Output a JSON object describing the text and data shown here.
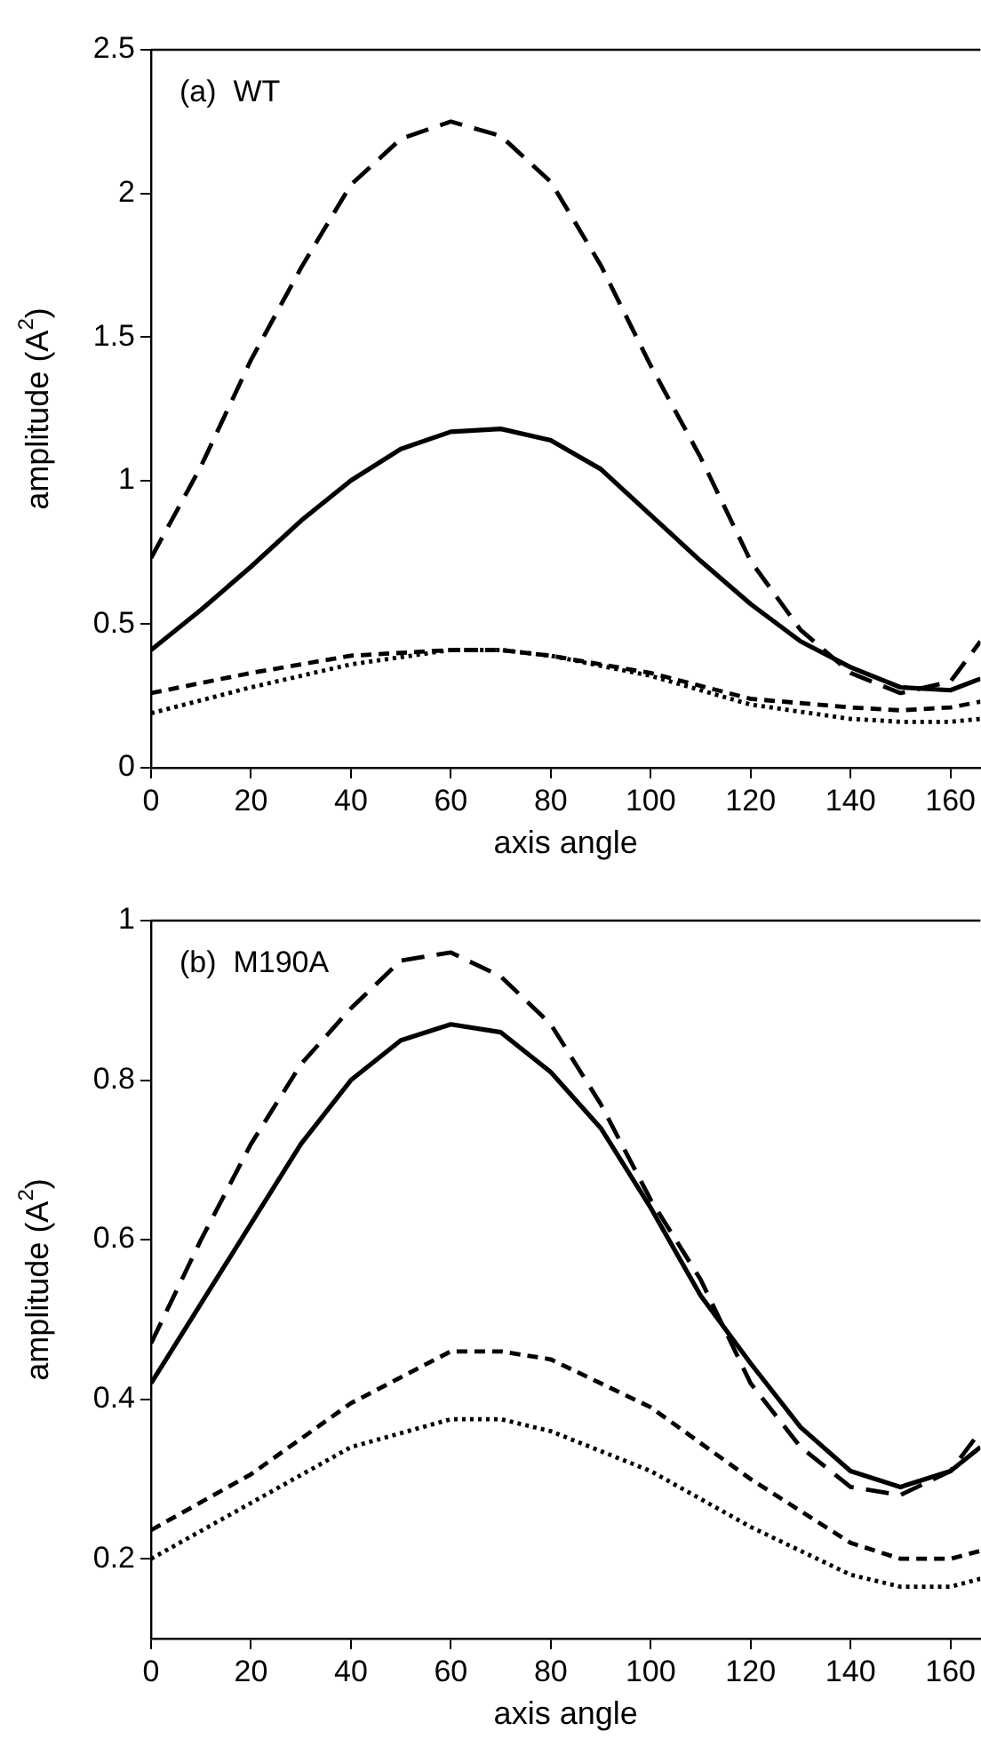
{
  "chart_data": [
    {
      "type": "line",
      "annotations": [
        "(a)  WT"
      ],
      "xlabel": "axis angle",
      "ylabel": "amplitude (A$^{2}$)",
      "x": [
        0,
        10,
        20,
        30,
        40,
        50,
        60,
        70,
        80,
        90,
        100,
        110,
        120,
        130,
        140,
        150,
        160,
        166
      ],
      "xlim": [
        0,
        166
      ],
      "xticks": [
        0,
        20,
        40,
        60,
        80,
        100,
        120,
        140,
        160
      ],
      "ylim": [
        0,
        2.5
      ],
      "yticks": [
        0,
        0.5,
        1,
        1.5,
        2,
        2.5
      ],
      "grid": false,
      "legend": false,
      "marker": "none",
      "series": [
        {
          "color": "#000000",
          "line_style": "dashed",
          "values": [
            0.73,
            1.05,
            1.42,
            1.74,
            2.03,
            2.19,
            2.25,
            2.2,
            2.04,
            1.75,
            1.4,
            1.08,
            0.72,
            0.48,
            0.33,
            0.26,
            0.3,
            0.44
          ]
        },
        {
          "color": "#000000",
          "line_style": "solid",
          "values": [
            0.41,
            0.55,
            0.7,
            0.86,
            1.0,
            1.11,
            1.17,
            1.18,
            1.14,
            1.04,
            0.88,
            0.72,
            0.57,
            0.44,
            0.35,
            0.28,
            0.27,
            0.31
          ]
        },
        {
          "color": "#000000",
          "line_style": "dashed",
          "x": [
            0,
            20,
            40,
            60,
            70,
            80,
            100,
            120,
            140,
            150,
            160,
            166
          ],
          "values": [
            0.26,
            0.33,
            0.39,
            0.41,
            0.41,
            0.39,
            0.33,
            0.24,
            0.21,
            0.2,
            0.21,
            0.23
          ]
        },
        {
          "color": "#000000",
          "line_style": "dotted",
          "x": [
            0,
            20,
            40,
            60,
            70,
            80,
            100,
            120,
            140,
            150,
            160,
            166
          ],
          "values": [
            0.19,
            0.28,
            0.36,
            0.41,
            0.41,
            0.39,
            0.32,
            0.22,
            0.17,
            0.16,
            0.16,
            0.17
          ]
        }
      ]
    },
    {
      "type": "line",
      "annotations": [
        "(b)  M190A"
      ],
      "xlabel": "axis angle",
      "ylabel": "amplitude (A$^{2}$)",
      "x": [
        0,
        10,
        20,
        30,
        40,
        50,
        60,
        70,
        80,
        90,
        100,
        110,
        120,
        130,
        140,
        150,
        160,
        166
      ],
      "xlim": [
        0,
        166
      ],
      "xticks": [
        0,
        20,
        40,
        60,
        80,
        100,
        120,
        140,
        160
      ],
      "ylim": [
        0.1,
        1
      ],
      "yticks": [
        0.2,
        0.4,
        0.6,
        0.8,
        1
      ],
      "grid": false,
      "legend": false,
      "marker": "none",
      "series": [
        {
          "color": "#000000",
          "line_style": "dashed",
          "values": [
            0.47,
            0.6,
            0.72,
            0.82,
            0.89,
            0.95,
            0.96,
            0.93,
            0.87,
            0.77,
            0.65,
            0.55,
            0.42,
            0.34,
            0.29,
            0.28,
            0.31,
            0.36
          ]
        },
        {
          "color": "#000000",
          "line_style": "solid",
          "values": [
            0.42,
            0.52,
            0.62,
            0.72,
            0.8,
            0.85,
            0.87,
            0.86,
            0.81,
            0.74,
            0.64,
            0.53,
            0.445,
            0.365,
            0.31,
            0.29,
            0.31,
            0.34
          ]
        },
        {
          "color": "#000000",
          "line_style": "dashed",
          "x": [
            0,
            20,
            40,
            60,
            70,
            80,
            100,
            120,
            140,
            150,
            160,
            166
          ],
          "values": [
            0.236,
            0.306,
            0.395,
            0.46,
            0.46,
            0.45,
            0.39,
            0.3,
            0.22,
            0.2,
            0.2,
            0.21
          ]
        },
        {
          "color": "#000000",
          "line_style": "dotted",
          "x": [
            0,
            20,
            40,
            60,
            70,
            80,
            100,
            120,
            140,
            150,
            160,
            166
          ],
          "values": [
            0.2,
            0.27,
            0.34,
            0.375,
            0.375,
            0.36,
            0.31,
            0.24,
            0.18,
            0.165,
            0.165,
            0.175
          ]
        }
      ]
    }
  ]
}
